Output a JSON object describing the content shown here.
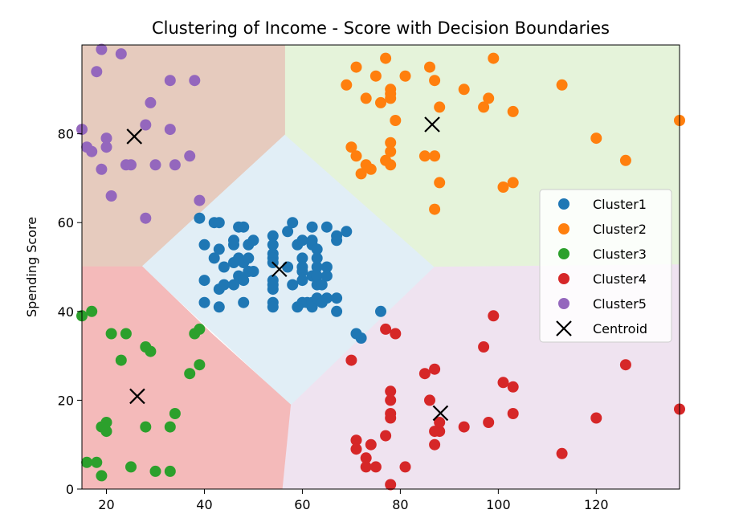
{
  "chart_data": {
    "type": "scatter",
    "title": "Clustering of Income - Score with Decision Boundaries",
    "xlabel": "",
    "ylabel": "Spending Score",
    "xlim": [
      15,
      137
    ],
    "ylim": [
      0,
      100
    ],
    "xticks": [
      20,
      40,
      60,
      80,
      100,
      120
    ],
    "yticks": [
      0,
      20,
      40,
      60,
      80
    ],
    "grid": false,
    "legend_position": "right",
    "series": [
      {
        "name": "Cluster1",
        "color": "#1f77b4",
        "points": [
          [
            39,
            61
          ],
          [
            40,
            55
          ],
          [
            40,
            47
          ],
          [
            40,
            42
          ],
          [
            42,
            52
          ],
          [
            42,
            60
          ],
          [
            43,
            41
          ],
          [
            43,
            45
          ],
          [
            43,
            54
          ],
          [
            43,
            60
          ],
          [
            44,
            46
          ],
          [
            44,
            50
          ],
          [
            46,
            51
          ],
          [
            46,
            55
          ],
          [
            46,
            56
          ],
          [
            46,
            46
          ],
          [
            47,
            52
          ],
          [
            47,
            59
          ],
          [
            47,
            48
          ],
          [
            48,
            59
          ],
          [
            48,
            51
          ],
          [
            48,
            47
          ],
          [
            48,
            42
          ],
          [
            49,
            55
          ],
          [
            49,
            52
          ],
          [
            49,
            49
          ],
          [
            50,
            56
          ],
          [
            50,
            49
          ],
          [
            54,
            47
          ],
          [
            54,
            53
          ],
          [
            54,
            57
          ],
          [
            54,
            55
          ],
          [
            54,
            52
          ],
          [
            54,
            51
          ],
          [
            54,
            45
          ],
          [
            54,
            42
          ],
          [
            54,
            41
          ],
          [
            54,
            46
          ],
          [
            57,
            50
          ],
          [
            57,
            58
          ],
          [
            58,
            46
          ],
          [
            58,
            60
          ],
          [
            59,
            55
          ],
          [
            59,
            41
          ],
          [
            60,
            49
          ],
          [
            60,
            47
          ],
          [
            60,
            42
          ],
          [
            60,
            52
          ],
          [
            60,
            50
          ],
          [
            60,
            56
          ],
          [
            61,
            42
          ],
          [
            62,
            41
          ],
          [
            62,
            48
          ],
          [
            62,
            59
          ],
          [
            62,
            55
          ],
          [
            62,
            56
          ],
          [
            62,
            42
          ],
          [
            63,
            50
          ],
          [
            63,
            46
          ],
          [
            63,
            43
          ],
          [
            63,
            48
          ],
          [
            63,
            52
          ],
          [
            63,
            54
          ],
          [
            64,
            42
          ],
          [
            64,
            46
          ],
          [
            65,
            48
          ],
          [
            65,
            50
          ],
          [
            65,
            43
          ],
          [
            65,
            59
          ],
          [
            67,
            43
          ],
          [
            67,
            57
          ],
          [
            67,
            56
          ],
          [
            67,
            40
          ],
          [
            69,
            58
          ],
          [
            71,
            35
          ],
          [
            72,
            34
          ],
          [
            76,
            40
          ]
        ]
      },
      {
        "name": "Cluster2",
        "color": "#ff7f0e",
        "points": [
          [
            69,
            91
          ],
          [
            70,
            77
          ],
          [
            71,
            95
          ],
          [
            71,
            75
          ],
          [
            72,
            71
          ],
          [
            73,
            88
          ],
          [
            73,
            73
          ],
          [
            74,
            72
          ],
          [
            75,
            93
          ],
          [
            76,
            87
          ],
          [
            77,
            97
          ],
          [
            77,
            74
          ],
          [
            78,
            90
          ],
          [
            78,
            88
          ],
          [
            78,
            76
          ],
          [
            78,
            89
          ],
          [
            78,
            78
          ],
          [
            78,
            73
          ],
          [
            79,
            83
          ],
          [
            81,
            93
          ],
          [
            85,
            75
          ],
          [
            86,
            95
          ],
          [
            87,
            63
          ],
          [
            87,
            92
          ],
          [
            87,
            75
          ],
          [
            88,
            86
          ],
          [
            88,
            69
          ],
          [
            93,
            90
          ],
          [
            97,
            86
          ],
          [
            98,
            88
          ],
          [
            99,
            97
          ],
          [
            101,
            68
          ],
          [
            103,
            85
          ],
          [
            103,
            69
          ],
          [
            113,
            91
          ],
          [
            120,
            79
          ],
          [
            126,
            74
          ],
          [
            137,
            83
          ]
        ]
      },
      {
        "name": "Cluster3",
        "color": "#2ca02c",
        "points": [
          [
            15,
            39
          ],
          [
            16,
            6
          ],
          [
            17,
            40
          ],
          [
            18,
            6
          ],
          [
            19,
            3
          ],
          [
            19,
            14
          ],
          [
            20,
            15
          ],
          [
            20,
            13
          ],
          [
            21,
            35
          ],
          [
            23,
            29
          ],
          [
            24,
            35
          ],
          [
            25,
            5
          ],
          [
            28,
            14
          ],
          [
            28,
            32
          ],
          [
            29,
            31
          ],
          [
            30,
            4
          ],
          [
            33,
            4
          ],
          [
            33,
            14
          ],
          [
            34,
            17
          ],
          [
            37,
            26
          ],
          [
            38,
            35
          ],
          [
            39,
            36
          ],
          [
            39,
            28
          ]
        ]
      },
      {
        "name": "Cluster4",
        "color": "#d62728",
        "points": [
          [
            70,
            29
          ],
          [
            71,
            11
          ],
          [
            71,
            9
          ],
          [
            73,
            5
          ],
          [
            73,
            7
          ],
          [
            74,
            10
          ],
          [
            75,
            5
          ],
          [
            77,
            12
          ],
          [
            77,
            36
          ],
          [
            78,
            22
          ],
          [
            78,
            17
          ],
          [
            78,
            20
          ],
          [
            78,
            16
          ],
          [
            78,
            1
          ],
          [
            79,
            35
          ],
          [
            81,
            5
          ],
          [
            85,
            26
          ],
          [
            86,
            20
          ],
          [
            87,
            27
          ],
          [
            87,
            13
          ],
          [
            87,
            10
          ],
          [
            88,
            13
          ],
          [
            88,
            15
          ],
          [
            93,
            14
          ],
          [
            97,
            32
          ],
          [
            98,
            15
          ],
          [
            99,
            39
          ],
          [
            101,
            24
          ],
          [
            103,
            17
          ],
          [
            103,
            23
          ],
          [
            113,
            8
          ],
          [
            120,
            16
          ],
          [
            126,
            28
          ],
          [
            137,
            18
          ]
        ]
      },
      {
        "name": "Cluster5",
        "color": "#9467bd",
        "points": [
          [
            15,
            81
          ],
          [
            16,
            77
          ],
          [
            17,
            76
          ],
          [
            18,
            94
          ],
          [
            19,
            72
          ],
          [
            19,
            99
          ],
          [
            20,
            77
          ],
          [
            20,
            79
          ],
          [
            21,
            66
          ],
          [
            23,
            98
          ],
          [
            24,
            73
          ],
          [
            25,
            73
          ],
          [
            28,
            82
          ],
          [
            28,
            61
          ],
          [
            29,
            87
          ],
          [
            30,
            73
          ],
          [
            33,
            92
          ],
          [
            33,
            81
          ],
          [
            34,
            73
          ],
          [
            37,
            75
          ],
          [
            38,
            92
          ],
          [
            39,
            65
          ]
        ]
      }
    ],
    "centroids": {
      "name": "Centroid",
      "color": "#000000",
      "points": [
        [
          55.3,
          49.5
        ],
        [
          86.5,
          82.1
        ],
        [
          26.3,
          20.9
        ],
        [
          88.2,
          17.1
        ],
        [
          25.7,
          79.4
        ]
      ]
    },
    "regions": [
      {
        "cluster": "Cluster1",
        "color": "#e1eef6",
        "polygon": [
          [
            27.2,
            50.2
          ],
          [
            56.4,
            79.9
          ],
          [
            87.0,
            50.0
          ],
          [
            57.7,
            18.9
          ]
        ]
      },
      {
        "cluster": "Cluster2",
        "color": "#e5f3da",
        "polygon": [
          [
            56.4,
            100
          ],
          [
            137,
            100
          ],
          [
            137,
            50.5
          ],
          [
            87.0,
            50.0
          ],
          [
            56.4,
            79.9
          ]
        ]
      },
      {
        "cluster": "Cluster3",
        "color": "#f4baba",
        "polygon": [
          [
            15,
            0
          ],
          [
            56.0,
            0
          ],
          [
            57.7,
            18.9
          ],
          [
            41.5,
            35.0
          ],
          [
            27.2,
            50.2
          ],
          [
            15,
            50.2
          ]
        ]
      },
      {
        "cluster": "Cluster4",
        "color": "#efe3f0",
        "polygon": [
          [
            56.0,
            0
          ],
          [
            137,
            0
          ],
          [
            137,
            50.5
          ],
          [
            87.0,
            50.0
          ],
          [
            57.7,
            18.9
          ]
        ]
      },
      {
        "cluster": "Cluster5",
        "color": "#e6cbbe",
        "polygon": [
          [
            15,
            100
          ],
          [
            56.4,
            100
          ],
          [
            56.4,
            79.9
          ],
          [
            27.2,
            50.2
          ],
          [
            15,
            50.2
          ]
        ]
      }
    ]
  }
}
